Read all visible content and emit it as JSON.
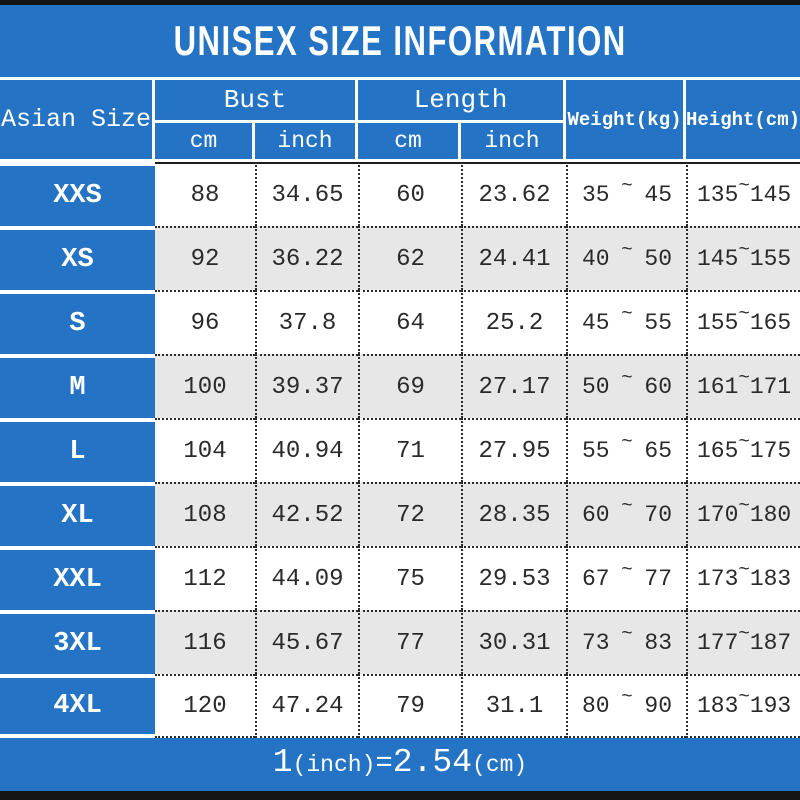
{
  "title": "UNISEX SIZE INFORMATION",
  "header": {
    "size_col": "Asian Size",
    "bust": "Bust",
    "length": "Length",
    "cm": "cm",
    "inch": "inch",
    "weight": "Weight(kg)",
    "height": "Height(cm)"
  },
  "tilde": "~",
  "rows": [
    {
      "size": "XXS",
      "bust_cm": "88",
      "bust_inch": "34.65",
      "length_cm": "60",
      "length_inch": "23.62",
      "weight_min": "35",
      "weight_max": "45",
      "height_min": "135",
      "height_max": "145"
    },
    {
      "size": "XS",
      "bust_cm": "92",
      "bust_inch": "36.22",
      "length_cm": "62",
      "length_inch": "24.41",
      "weight_min": "40",
      "weight_max": "50",
      "height_min": "145",
      "height_max": "155"
    },
    {
      "size": "S",
      "bust_cm": "96",
      "bust_inch": "37.8",
      "length_cm": "64",
      "length_inch": "25.2",
      "weight_min": "45",
      "weight_max": "55",
      "height_min": "155",
      "height_max": "165"
    },
    {
      "size": "M",
      "bust_cm": "100",
      "bust_inch": "39.37",
      "length_cm": "69",
      "length_inch": "27.17",
      "weight_min": "50",
      "weight_max": "60",
      "height_min": "161",
      "height_max": "171"
    },
    {
      "size": "L",
      "bust_cm": "104",
      "bust_inch": "40.94",
      "length_cm": "71",
      "length_inch": "27.95",
      "weight_min": "55",
      "weight_max": "65",
      "height_min": "165",
      "height_max": "175"
    },
    {
      "size": "XL",
      "bust_cm": "108",
      "bust_inch": "42.52",
      "length_cm": "72",
      "length_inch": "28.35",
      "weight_min": "60",
      "weight_max": "70",
      "height_min": "170",
      "height_max": "180"
    },
    {
      "size": "XXL",
      "bust_cm": "112",
      "bust_inch": "44.09",
      "length_cm": "75",
      "length_inch": "29.53",
      "weight_min": "67",
      "weight_max": "77",
      "height_min": "173",
      "height_max": "183"
    },
    {
      "size": "3XL",
      "bust_cm": "116",
      "bust_inch": "45.67",
      "length_cm": "77",
      "length_inch": "30.31",
      "weight_min": "73",
      "weight_max": "83",
      "height_min": "177",
      "height_max": "187"
    },
    {
      "size": "4XL",
      "bust_cm": "120",
      "bust_inch": "47.24",
      "length_cm": "79",
      "length_inch": "31.1",
      "weight_min": "80",
      "weight_max": "90",
      "height_min": "183",
      "height_max": "193"
    }
  ],
  "footer": {
    "num1": "1",
    "unit1": "(inch)",
    "equals": "=",
    "num2": "2.54",
    "unit2": "(cm)"
  },
  "colors": {
    "blue": "#2473c4",
    "alt_row_gray": "#e7e7e7",
    "row_white": "#ffffff",
    "border_dark": "#1d1d1d",
    "bar_black": "#141414",
    "text_dark": "#2a2a2a",
    "text_white": "#ffffff"
  },
  "chart_data": {
    "type": "table",
    "title": "UNISEX SIZE INFORMATION",
    "columns": [
      "Asian Size",
      "Bust cm",
      "Bust inch",
      "Length cm",
      "Length inch",
      "Weight(kg)",
      "Height(cm)"
    ],
    "rows": [
      [
        "XXS",
        "88",
        "34.65",
        "60",
        "23.62",
        "35~45",
        "135~145"
      ],
      [
        "XS",
        "92",
        "36.22",
        "62",
        "24.41",
        "40~50",
        "145~155"
      ],
      [
        "S",
        "96",
        "37.8",
        "64",
        "25.2",
        "45~55",
        "155~165"
      ],
      [
        "M",
        "100",
        "39.37",
        "69",
        "27.17",
        "50~60",
        "161~171"
      ],
      [
        "L",
        "104",
        "40.94",
        "71",
        "27.95",
        "55~65",
        "165~175"
      ],
      [
        "XL",
        "108",
        "42.52",
        "72",
        "28.35",
        "60~70",
        "170~180"
      ],
      [
        "XXL",
        "112",
        "44.09",
        "75",
        "29.53",
        "67~77",
        "173~183"
      ],
      [
        "3XL",
        "116",
        "45.67",
        "77",
        "30.31",
        "73~83",
        "177~187"
      ],
      [
        "4XL",
        "120",
        "47.24",
        "79",
        "31.1",
        "80~90",
        "183~193"
      ]
    ],
    "footnote": "1(inch)=2.54(cm)"
  }
}
